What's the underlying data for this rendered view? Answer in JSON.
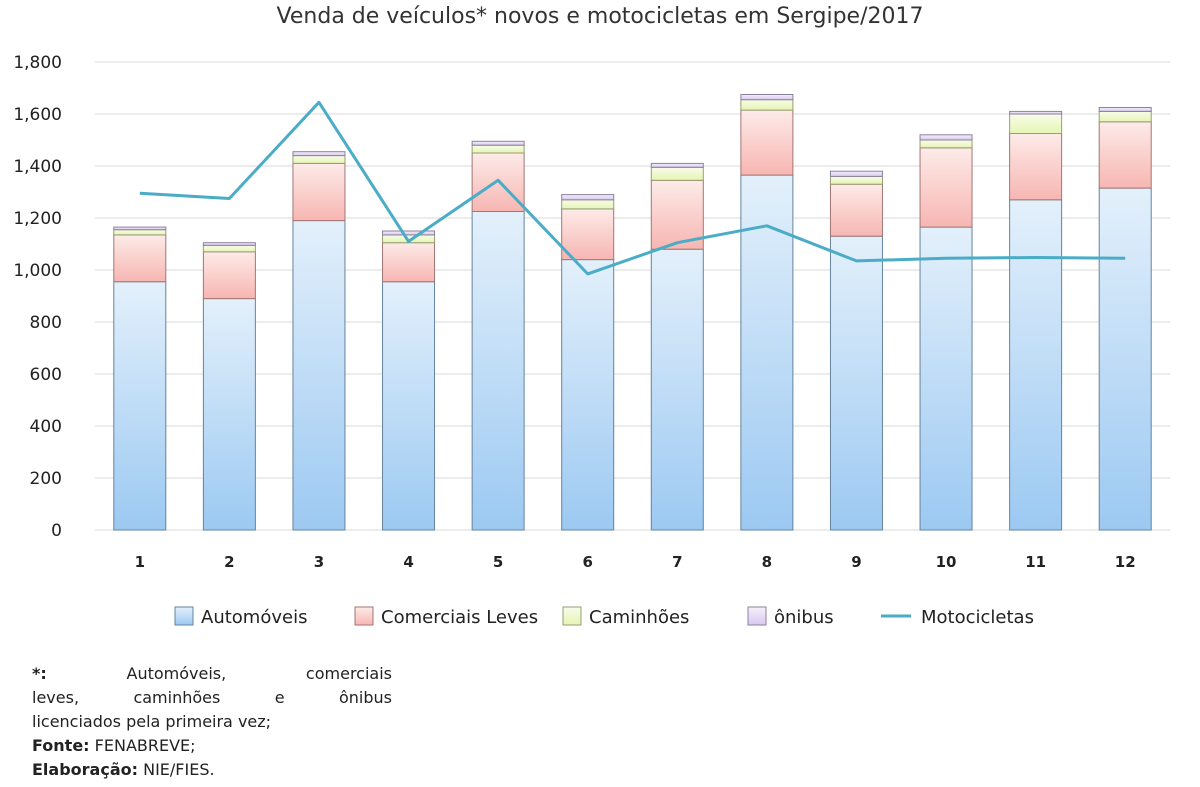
{
  "chart_data": {
    "type": "bar",
    "stacked": true,
    "title": "Venda de veículos* novos e motocicletas em Sergipe/2017",
    "xlabel": "",
    "ylabel": "",
    "ylim": [
      0,
      1800
    ],
    "yticks": [
      0,
      200,
      400,
      600,
      800,
      1000,
      1200,
      1400,
      1600,
      1800
    ],
    "ytick_labels": [
      "0",
      "200",
      "400",
      "600",
      "800",
      "1,000",
      "1,200",
      "1,400",
      "1,600",
      "1,800"
    ],
    "grid": true,
    "legend_position": "bottom",
    "categories": [
      "1",
      "2",
      "3",
      "4",
      "5",
      "6",
      "7",
      "8",
      "9",
      "10",
      "11",
      "12"
    ],
    "series": [
      {
        "name": "Automóveis",
        "type": "bar",
        "color": "#9cc9f2",
        "values": [
          955,
          890,
          1190,
          955,
          1225,
          1040,
          1080,
          1365,
          1130,
          1165,
          1270,
          1315
        ]
      },
      {
        "name": "Comerciais Leves",
        "type": "bar",
        "color": "#f7b6b2",
        "values": [
          180,
          180,
          220,
          150,
          225,
          195,
          265,
          250,
          200,
          305,
          255,
          255
        ]
      },
      {
        "name": "Caminhões",
        "type": "bar",
        "color": "#e6f5b3",
        "values": [
          20,
          25,
          30,
          30,
          30,
          35,
          50,
          40,
          30,
          30,
          75,
          40
        ]
      },
      {
        "name": "ônibus",
        "type": "bar",
        "color": "#d9c8f0",
        "values": [
          10,
          10,
          15,
          15,
          15,
          20,
          15,
          20,
          20,
          20,
          10,
          15
        ]
      },
      {
        "name": "Motocicletas",
        "type": "line",
        "color": "#4aacc6",
        "values": [
          1295,
          1275,
          1645,
          1110,
          1345,
          985,
          1105,
          1170,
          1035,
          1045,
          1048,
          1045
        ]
      }
    ]
  },
  "footnote": {
    "line1": "Automóveis, comerciais",
    "line1_marker": "*:",
    "line2": "leves, caminhões e ônibus",
    "line3": "licenciados pela primeira vez;",
    "fonte_label": "Fonte:",
    "fonte_value": "FENABREVE;",
    "elaboracao_label": "Elaboração:",
    "elaboracao_value": "NIE/FIES."
  }
}
